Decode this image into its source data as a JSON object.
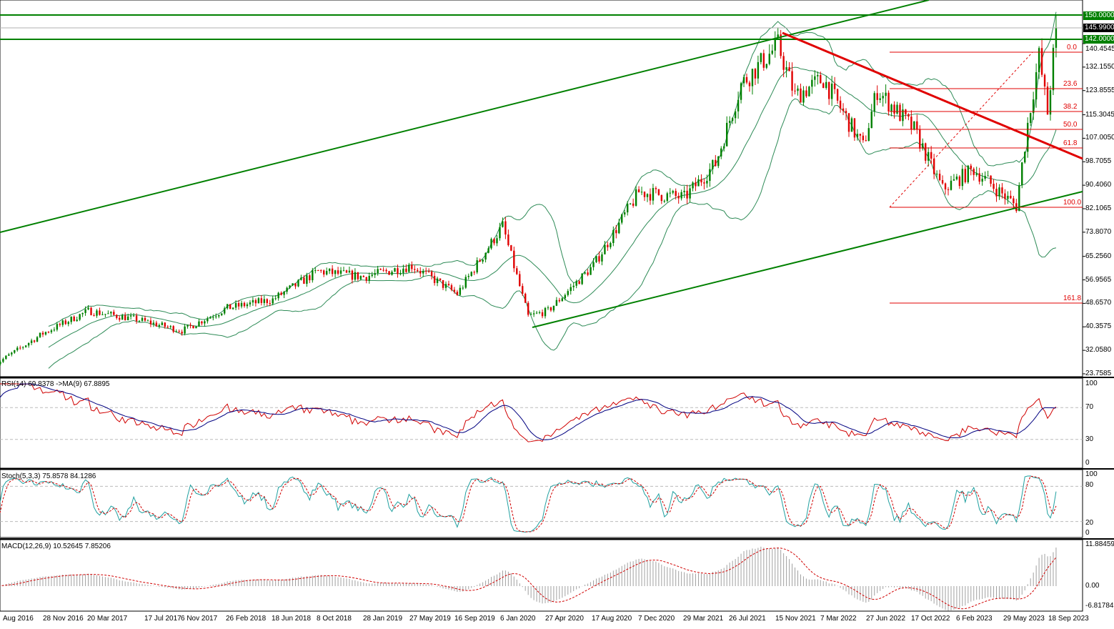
{
  "chart_data": {
    "type": "candlestick",
    "price_axis_ticks": [
      "140.4545",
      "132.1550",
      "123.8555",
      "115.3045",
      "107.0050",
      "98.7055",
      "90.4060",
      "82.1065",
      "73.8070",
      "65.2560",
      "56.9565",
      "48.6570",
      "40.3575",
      "32.0580",
      "23.7585"
    ],
    "price_tags": {
      "upper": "150.0000",
      "current": "145.9900",
      "lower": "142.0000"
    },
    "horizontal_levels": [
      150.0,
      142.0
    ],
    "current_price": 145.99,
    "date_ticks": [
      "Aug 2016",
      "28 Nov 2016",
      "20 Mar 2017",
      "17 Jul 2017",
      "6 Nov 2017",
      "26 Feb 2018",
      "18 Jun 2018",
      "8 Oct 2018",
      "28 Jan 2019",
      "27 May 2019",
      "16 Sep 2019",
      "6 Jan 2020",
      "27 Apr 2020",
      "17 Aug 2020",
      "7 Dec 2020",
      "29 Mar 2021",
      "26 Jul 2021",
      "15 Nov 2021",
      "7 Mar 2022",
      "27 Jun 2022",
      "17 Oct 2022",
      "6 Feb 2023",
      "29 May 2023",
      "18 Sep 2023"
    ],
    "approx_price_path": [
      [
        "2016-08-01",
        27
      ],
      [
        "2016-11-28",
        38
      ],
      [
        "2017-03-20",
        46
      ],
      [
        "2017-07-17",
        43
      ],
      [
        "2017-11-06",
        39
      ],
      [
        "2018-02-26",
        47
      ],
      [
        "2018-06-18",
        50
      ],
      [
        "2018-10-08",
        60
      ],
      [
        "2019-01-28",
        58
      ],
      [
        "2019-05-27",
        62
      ],
      [
        "2019-09-16",
        52
      ],
      [
        "2020-01-06",
        76
      ],
      [
        "2020-03-09",
        44
      ],
      [
        "2020-04-27",
        46
      ],
      [
        "2020-08-17",
        62
      ],
      [
        "2020-12-07",
        88
      ],
      [
        "2021-03-29",
        86
      ],
      [
        "2021-06-14",
        98
      ],
      [
        "2021-08-16",
        126
      ],
      [
        "2021-11-15",
        140
      ],
      [
        "2021-12-27",
        122
      ],
      [
        "2022-03-07",
        128
      ],
      [
        "2022-06-13",
        104
      ],
      [
        "2022-07-18",
        124
      ],
      [
        "2022-10-17",
        110
      ],
      [
        "2022-12-26",
        89
      ],
      [
        "2023-03-13",
        96
      ],
      [
        "2023-06-26",
        83
      ],
      [
        "2023-07-24",
        112
      ],
      [
        "2023-08-21",
        136
      ],
      [
        "2023-09-11",
        116
      ],
      [
        "2023-10-02",
        146
      ]
    ],
    "fibonacci": {
      "labels": [
        "0.0",
        "23.6",
        "38.2",
        "50.0",
        "61.8",
        "100.0",
        "161.8"
      ],
      "high": 136.5,
      "low": 82.1
    },
    "rsi": {
      "label": "RSI(14) 69.8378  ->MA(9) 67.8895",
      "ticks": [
        "100",
        "70",
        "30",
        "0"
      ]
    },
    "stoch": {
      "label": "Stoch(5,3,3) 75.8578 84.1286",
      "ticks": [
        "100",
        "80",
        "20",
        "0"
      ]
    },
    "macd": {
      "label": "MACD(12,26,9) 10.52645 7.85206",
      "ticks": [
        "11.88459",
        "0.00",
        "-6.81784"
      ]
    },
    "colors": {
      "bull": "#008000",
      "bear": "#e00000",
      "bands": "#2e8b57",
      "trend_up": "#008000",
      "trend_down": "#e00000",
      "fib": "#e00000",
      "rsi": "#d00000",
      "rsi_ma": "#000080",
      "stoch_main": "#20a0a0",
      "stoch_signal": "#d00000",
      "macd_hist": "#a0a0a0",
      "macd_signal": "#d00000"
    }
  }
}
